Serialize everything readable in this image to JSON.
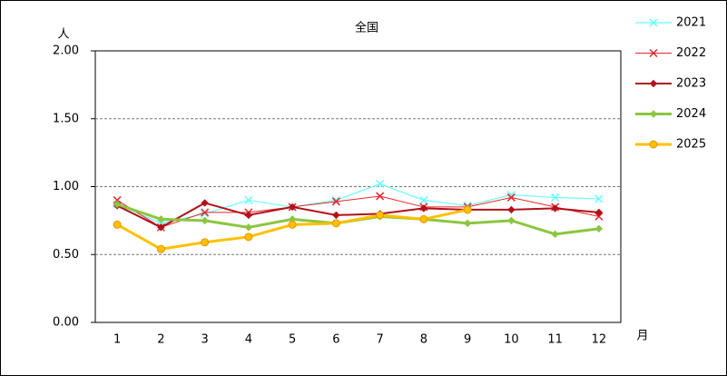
{
  "chart_data": {
    "type": "line",
    "title": "全国",
    "y_unit": "人",
    "x_unit": "月",
    "categories": [
      "1",
      "2",
      "3",
      "4",
      "5",
      "6",
      "7",
      "8",
      "9",
      "10",
      "11",
      "12"
    ],
    "ylim": [
      0,
      2
    ],
    "yticks": [
      {
        "value": 0,
        "label": "0.00"
      },
      {
        "value": 0.5,
        "label": "0.50"
      },
      {
        "value": 1,
        "label": "1.00"
      },
      {
        "value": 1.5,
        "label": "1.50"
      },
      {
        "value": 2,
        "label": "2.00"
      }
    ],
    "grid": true,
    "legend": "right",
    "series": [
      {
        "name": "2021",
        "color": "#66ffff",
        "marker": "x",
        "values": [
          0.87,
          0.73,
          0.8,
          0.9,
          0.85,
          0.9,
          1.02,
          0.9,
          0.86,
          0.94,
          0.92,
          0.91
        ]
      },
      {
        "name": "2022",
        "color": "#e8262a",
        "marker": "x",
        "values": [
          0.9,
          0.7,
          0.81,
          0.81,
          0.85,
          0.89,
          0.93,
          0.85,
          0.85,
          0.92,
          0.85,
          0.78
        ]
      },
      {
        "name": "2023",
        "color": "#b0121b",
        "marker": "diamond",
        "values": [
          0.86,
          0.7,
          0.88,
          0.79,
          0.85,
          0.79,
          0.8,
          0.84,
          0.83,
          0.83,
          0.84,
          0.81
        ]
      },
      {
        "name": "2024",
        "color": "#8cc63f",
        "marker": "diamond",
        "values": [
          0.87,
          0.76,
          0.75,
          0.7,
          0.76,
          0.73,
          0.78,
          0.76,
          0.73,
          0.75,
          0.65,
          0.69
        ]
      },
      {
        "name": "2025",
        "color": "#ffc000",
        "marker": "circle",
        "values": [
          0.72,
          0.54,
          0.59,
          0.63,
          0.72,
          0.73,
          0.79,
          0.76,
          0.83,
          null,
          null,
          null
        ]
      }
    ]
  }
}
